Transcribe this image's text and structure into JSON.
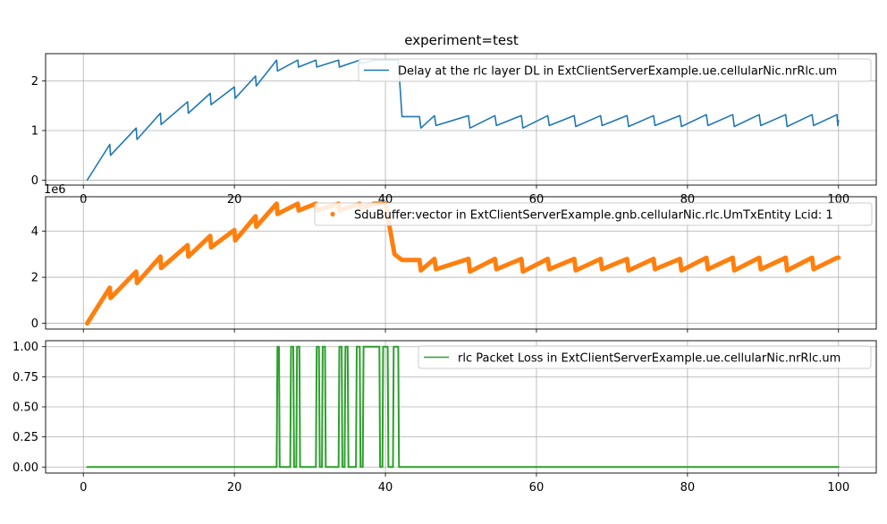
{
  "figure_title": "experiment=test",
  "colors": {
    "blue": "#1f77b4",
    "orange": "#ff7f0e",
    "green": "#2ca02c",
    "grid": "#b0b0b0"
  },
  "chart_data": [
    {
      "type": "line",
      "title": "experiment=test",
      "xlabel": "",
      "ylabel": "",
      "xlim": [
        -5,
        105
      ],
      "ylim": [
        -0.1,
        2.55
      ],
      "xticks": [
        "0",
        "20",
        "40",
        "60",
        "80",
        "100"
      ],
      "yticks": [
        0,
        1,
        2
      ],
      "ytick_labels": [
        "0",
        "1",
        "2"
      ],
      "grid": true,
      "legend_position": "upper-right",
      "series": [
        {
          "name": "Delay at the rlc layer DL in ExtClientServerExample.ue.cellularNic.nrRlc.um",
          "color": "#1f77b4",
          "x": [
            0.5,
            3.5,
            3.6,
            7,
            7.1,
            10.2,
            10.3,
            13.8,
            13.9,
            16.8,
            16.9,
            20,
            20.1,
            22.8,
            22.9,
            25.6,
            25.7,
            28.4,
            28.5,
            30.8,
            30.9,
            33.8,
            33.9,
            36.6,
            36.7,
            38.5,
            41.7,
            42.2,
            44.5,
            44.7,
            46.5,
            46.7,
            51,
            51.2,
            54.5,
            54.7,
            58,
            58.2,
            61.5,
            61.7,
            65,
            65.2,
            68.5,
            68.7,
            72,
            72.2,
            75.5,
            75.7,
            79,
            79.2,
            82.5,
            82.7,
            86,
            86.2,
            89.5,
            89.7,
            93,
            93.2,
            96.5,
            96.7,
            99.8,
            99.9,
            100
          ],
          "y": [
            0,
            0.72,
            0.5,
            1.05,
            0.82,
            1.35,
            1.12,
            1.58,
            1.35,
            1.75,
            1.52,
            1.88,
            1.65,
            2.1,
            1.9,
            2.42,
            2.2,
            2.42,
            2.28,
            2.42,
            2.28,
            2.42,
            2.28,
            2.42,
            2.35,
            2.42,
            2.42,
            1.28,
            1.28,
            1.05,
            1.3,
            1.1,
            1.3,
            1.05,
            1.3,
            1.1,
            1.3,
            1.05,
            1.3,
            1.1,
            1.3,
            1.08,
            1.3,
            1.1,
            1.3,
            1.08,
            1.3,
            1.1,
            1.3,
            1.08,
            1.32,
            1.1,
            1.32,
            1.08,
            1.32,
            1.1,
            1.32,
            1.08,
            1.32,
            1.1,
            1.32,
            1.1,
            1.2
          ]
        }
      ]
    },
    {
      "type": "scatter",
      "title": "",
      "xlabel": "",
      "ylabel": "",
      "offset_label": "1e6",
      "xlim": [
        -5,
        105
      ],
      "ylim": [
        -0.25,
        5.5
      ],
      "xticks": [
        "",
        "",
        "",
        "",
        "",
        ""
      ],
      "yticks": [
        0,
        2,
        4
      ],
      "ytick_labels": [
        "0",
        "2",
        "4"
      ],
      "grid": true,
      "legend_position": "upper-right",
      "series": [
        {
          "name": "SduBuffer:vector in ExtClientServerExample.gnb.cellularNic.rlc.UmTxEntity Lcid: 1",
          "color": "#ff7f0e",
          "x": [
            0.5,
            3.5,
            3.6,
            7,
            7.1,
            10.2,
            10.3,
            13.8,
            13.9,
            16.8,
            16.9,
            20,
            20.1,
            22.8,
            22.9,
            25.6,
            25.7,
            28.4,
            28.5,
            30.8,
            30.9,
            33.8,
            33.9,
            36.6,
            36.7,
            38.5,
            40,
            41.2,
            42.2,
            44.5,
            44.7,
            46.5,
            46.7,
            51,
            51.2,
            54.5,
            54.7,
            58,
            58.2,
            61.5,
            61.7,
            65,
            65.2,
            68.5,
            68.7,
            72,
            72.2,
            75.5,
            75.7,
            79,
            79.2,
            82.5,
            82.7,
            86,
            86.2,
            89.5,
            89.7,
            93,
            93.2,
            96.5,
            96.7,
            99.8,
            100
          ],
          "y": [
            0,
            1.55,
            1.1,
            2.25,
            1.75,
            2.9,
            2.4,
            3.4,
            2.9,
            3.8,
            3.3,
            4.05,
            3.6,
            4.65,
            4.2,
            5.2,
            4.75,
            5.2,
            4.9,
            5.2,
            4.9,
            5.2,
            4.9,
            5.2,
            5.0,
            5.2,
            5.2,
            3.0,
            2.75,
            2.75,
            2.3,
            2.8,
            2.35,
            2.8,
            2.25,
            2.8,
            2.35,
            2.8,
            2.25,
            2.8,
            2.35,
            2.8,
            2.3,
            2.8,
            2.35,
            2.8,
            2.3,
            2.8,
            2.35,
            2.8,
            2.3,
            2.85,
            2.35,
            2.85,
            2.3,
            2.85,
            2.35,
            2.85,
            2.3,
            2.85,
            2.35,
            2.85,
            2.85
          ]
        }
      ]
    },
    {
      "type": "line",
      "title": "",
      "xlabel": "",
      "ylabel": "",
      "xlim": [
        -5,
        105
      ],
      "ylim": [
        -0.05,
        1.05
      ],
      "xticks": [
        "0",
        "20",
        "40",
        "60",
        "80",
        "100"
      ],
      "yticks": [
        0,
        0.25,
        0.5,
        0.75,
        1.0
      ],
      "ytick_labels": [
        "0.00",
        "0.25",
        "0.50",
        "0.75",
        "1.00"
      ],
      "grid": true,
      "legend_position": "upper-right",
      "series": [
        {
          "name": "rlc Packet Loss in ExtClientServerExample.ue.cellularNic.nrRlc.um",
          "color": "#2ca02c",
          "x": [
            0.5,
            25.6,
            25.7,
            25.9,
            26.0,
            27.4,
            27.5,
            27.8,
            27.9,
            28.2,
            28.3,
            28.6,
            28.7,
            29.0,
            29.1,
            30.8,
            30.9,
            31.2,
            31.3,
            31.6,
            31.7,
            32.0,
            32.1,
            33.8,
            33.9,
            34.2,
            34.3,
            34.6,
            34.7,
            35.0,
            35.1,
            36.1,
            36.2,
            36.6,
            36.7,
            37.0,
            37.1,
            39.2,
            39.3,
            39.6,
            39.7,
            40.3,
            40.4,
            41.0,
            41.1,
            41.7,
            41.8,
            100
          ],
          "y": [
            0,
            0,
            1,
            1,
            0,
            0,
            1,
            1,
            0,
            0,
            1,
            1,
            0,
            0,
            0,
            0,
            1,
            1,
            0,
            0,
            1,
            1,
            0,
            0,
            1,
            1,
            0,
            0,
            1,
            1,
            0,
            0,
            1,
            1,
            0,
            0,
            1,
            1,
            0,
            0,
            1,
            1,
            0,
            0,
            1,
            1,
            0,
            0
          ]
        }
      ]
    }
  ]
}
